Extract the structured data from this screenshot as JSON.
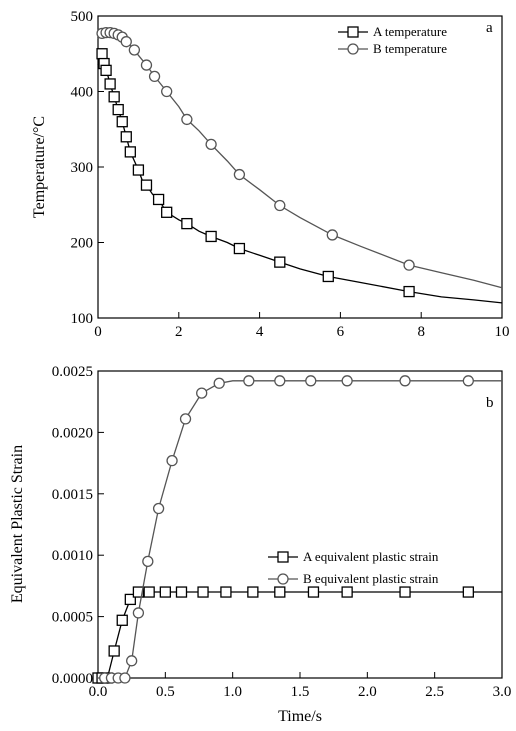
{
  "chart_data": [
    {
      "type": "line",
      "panel_label": "a",
      "xlabel": "",
      "ylabel": "Temperature/°C",
      "xlim": [
        0,
        10
      ],
      "ylim": [
        100,
        500
      ],
      "xticks": [
        0,
        2,
        4,
        6,
        8,
        10
      ],
      "yticks": [
        100,
        200,
        300,
        400,
        500
      ],
      "xtick_labels": [
        "0",
        "2",
        "4",
        "6",
        "8",
        "10"
      ],
      "ytick_labels": [
        "100",
        "200",
        "300",
        "400",
        "500"
      ],
      "grid": false,
      "legend_position": "top-right",
      "series": [
        {
          "name": "A temperature",
          "marker": "square",
          "color": "#000000",
          "x": [
            0,
            0.05,
            0.1,
            0.15,
            0.2,
            0.25,
            0.3,
            0.4,
            0.5,
            0.6,
            0.7,
            0.8,
            0.9,
            1.0,
            1.1,
            1.2,
            1.35,
            1.5,
            1.7,
            2.0,
            2.2,
            2.5,
            2.8,
            3.2,
            3.5,
            4.0,
            4.5,
            5.0,
            5.7,
            6.5,
            7.7,
            8.5,
            9.3,
            10.0
          ],
          "y": [
            435,
            448,
            450,
            437,
            428,
            420,
            410,
            393,
            376,
            360,
            340,
            320,
            308,
            296,
            282,
            276,
            264,
            257,
            240,
            230,
            225,
            215,
            208,
            200,
            192,
            183,
            174,
            165,
            155,
            147,
            135,
            128,
            124,
            120
          ],
          "marked": [
            false,
            false,
            true,
            true,
            true,
            false,
            true,
            true,
            true,
            true,
            true,
            true,
            false,
            true,
            false,
            true,
            false,
            true,
            true,
            false,
            true,
            false,
            true,
            false,
            true,
            false,
            true,
            false,
            true,
            false,
            true,
            false,
            false,
            false
          ]
        },
        {
          "name": "B temperature",
          "marker": "circle",
          "color": "#555555",
          "x": [
            0,
            0.1,
            0.2,
            0.3,
            0.4,
            0.5,
            0.6,
            0.7,
            0.8,
            0.9,
            1.0,
            1.2,
            1.4,
            1.7,
            2.0,
            2.2,
            2.5,
            2.8,
            3.2,
            3.5,
            4.0,
            4.5,
            5.0,
            5.8,
            6.5,
            7.7,
            8.5,
            9.3,
            10.0
          ],
          "y": [
            470,
            477,
            478,
            478,
            477,
            475,
            472,
            466,
            461,
            455,
            448,
            435,
            420,
            400,
            380,
            363,
            348,
            330,
            308,
            290,
            270,
            249,
            233,
            210,
            195,
            170,
            160,
            150,
            140
          ],
          "marked": [
            false,
            true,
            true,
            true,
            true,
            true,
            true,
            true,
            false,
            true,
            false,
            true,
            true,
            true,
            false,
            true,
            false,
            true,
            false,
            true,
            false,
            true,
            false,
            true,
            false,
            true,
            false,
            false,
            false
          ]
        }
      ]
    },
    {
      "type": "line",
      "panel_label": "b",
      "xlabel": "Time/s",
      "ylabel": "Equivalent Plastic Strain",
      "xlim": [
        0,
        3
      ],
      "ylim": [
        0,
        0.0025
      ],
      "xticks": [
        0,
        0.5,
        1.0,
        1.5,
        2.0,
        2.5,
        3.0
      ],
      "yticks": [
        0,
        0.0005,
        0.001,
        0.0015,
        0.002,
        0.0025
      ],
      "xtick_labels": [
        "0.0",
        "0.5",
        "1.0",
        "1.5",
        "2.0",
        "2.5",
        "3.0"
      ],
      "ytick_labels": [
        "0.0000",
        "0.0005",
        "0.0010",
        "0.0015",
        "0.0020",
        "0.0025"
      ],
      "grid": false,
      "legend_position": "center-right",
      "series": [
        {
          "name": "A equivalent plastic strain",
          "marker": "square",
          "color": "#000000",
          "x": [
            0,
            0.03,
            0.07,
            0.12,
            0.18,
            0.24,
            0.3,
            0.38,
            0.5,
            0.62,
            0.78,
            0.95,
            1.15,
            1.35,
            1.6,
            1.85,
            2.28,
            2.75,
            3.0
          ],
          "y": [
            0,
            0,
            0,
            0.00022,
            0.00047,
            0.00064,
            0.0007,
            0.0007,
            0.0007,
            0.0007,
            0.0007,
            0.0007,
            0.0007,
            0.0007,
            0.0007,
            0.0007,
            0.0007,
            0.0007,
            0.0007
          ],
          "marked": [
            true,
            true,
            true,
            true,
            true,
            true,
            true,
            true,
            true,
            true,
            true,
            true,
            true,
            true,
            true,
            true,
            true,
            true,
            false
          ]
        },
        {
          "name": "B equivalent plastic strain",
          "marker": "circle",
          "color": "#555555",
          "x": [
            0,
            0.05,
            0.1,
            0.15,
            0.2,
            0.25,
            0.3,
            0.37,
            0.45,
            0.55,
            0.65,
            0.77,
            0.9,
            1.0,
            1.12,
            1.35,
            1.58,
            1.85,
            2.28,
            2.75,
            3.0
          ],
          "y": [
            0,
            0,
            0,
            0,
            0,
            0.00014,
            0.00053,
            0.00095,
            0.00138,
            0.00177,
            0.00211,
            0.00232,
            0.0024,
            0.00242,
            0.00242,
            0.00242,
            0.00242,
            0.00242,
            0.00242,
            0.00242,
            0.00242
          ],
          "marked": [
            false,
            true,
            true,
            true,
            true,
            true,
            true,
            true,
            true,
            true,
            true,
            true,
            true,
            false,
            true,
            true,
            true,
            true,
            true,
            true,
            false
          ]
        }
      ]
    }
  ]
}
